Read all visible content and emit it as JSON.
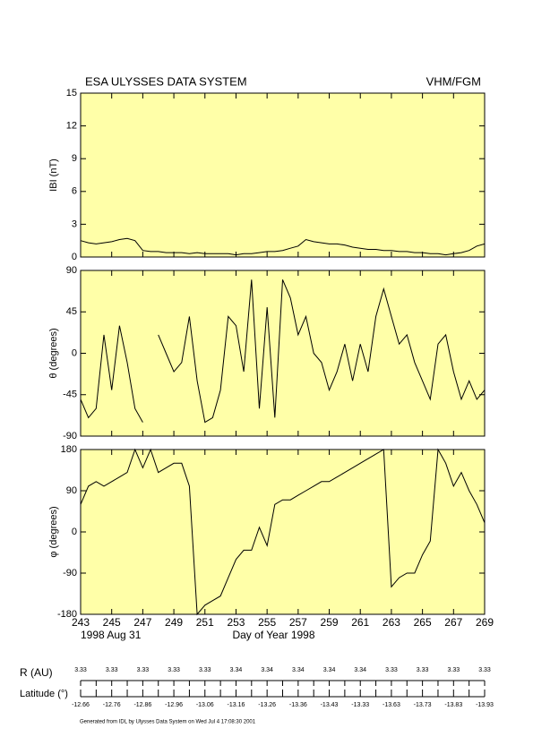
{
  "header": {
    "title": "ESA ULYSSES DATA SYSTEM",
    "instrument": "VHM/FGM"
  },
  "chart_data": [
    {
      "type": "line",
      "ylabel": "IBI (nT)",
      "color": "#000000",
      "x": [
        243,
        243.5,
        244,
        244.5,
        245,
        245.5,
        246,
        246.5,
        247,
        247.5,
        248,
        248.5,
        249,
        249.5,
        250,
        250.5,
        251,
        251.5,
        252,
        252.5,
        253,
        253.5,
        254,
        254.5,
        255,
        255.5,
        256,
        256.5,
        257,
        257.5,
        258,
        258.5,
        259,
        259.5,
        260,
        260.5,
        261,
        261.5,
        262,
        262.5,
        263,
        263.5,
        264,
        264.5,
        265,
        265.5,
        266,
        266.5,
        267,
        267.5,
        268,
        268.5,
        269
      ],
      "values": [
        1.5,
        1.3,
        1.2,
        1.3,
        1.4,
        1.6,
        1.7,
        1.5,
        0.6,
        0.5,
        0.5,
        0.4,
        0.4,
        0.4,
        0.3,
        0.4,
        0.3,
        0.3,
        0.3,
        0.3,
        0.2,
        0.3,
        0.3,
        0.4,
        0.5,
        0.5,
        0.6,
        0.8,
        1.0,
        1.6,
        1.4,
        1.3,
        1.2,
        1.2,
        1.1,
        0.9,
        0.8,
        0.7,
        0.7,
        0.6,
        0.6,
        0.5,
        0.5,
        0.4,
        0.4,
        0.3,
        0.3,
        0.2,
        0.3,
        0.4,
        0.6,
        1.0,
        1.2
      ],
      "xlim": [
        243,
        269
      ],
      "xticks": [
        243,
        245,
        247,
        249,
        251,
        253,
        255,
        257,
        259,
        261,
        263,
        265,
        267,
        269
      ],
      "ylim": [
        0,
        15
      ],
      "yticks": [
        0,
        3,
        6,
        9,
        12,
        15
      ]
    },
    {
      "type": "line",
      "ylabel": "θ (degrees)",
      "color": "#000000",
      "x": [
        243,
        243.5,
        244,
        244.5,
        245,
        245.5,
        246,
        246.5,
        247,
        247.5,
        248,
        248.5,
        249,
        249.5,
        250,
        250.5,
        251,
        251.5,
        252,
        252.5,
        253,
        253.5,
        254,
        254.5,
        255,
        255.5,
        256,
        256.5,
        257,
        257.5,
        258,
        258.5,
        259,
        259.5,
        260,
        260.5,
        261,
        261.5,
        262,
        262.5,
        263,
        263.5,
        264,
        264.5,
        265,
        265.5,
        266,
        266.5,
        267,
        267.5,
        268,
        268.5,
        269
      ],
      "values": [
        -50,
        -70,
        -60,
        20,
        -40,
        30,
        -10,
        -60,
        -75,
        null,
        20,
        0,
        -20,
        -10,
        40,
        -30,
        -75,
        -70,
        -40,
        40,
        30,
        -20,
        80,
        -60,
        50,
        -70,
        80,
        60,
        20,
        40,
        0,
        -10,
        -40,
        -20,
        10,
        -30,
        10,
        -20,
        40,
        70,
        40,
        10,
        20,
        -10,
        -30,
        -50,
        10,
        20,
        -20,
        -50,
        -30,
        -50,
        -40
      ],
      "xlim": [
        243,
        269
      ],
      "xticks": [
        243,
        245,
        247,
        249,
        251,
        253,
        255,
        257,
        259,
        261,
        263,
        265,
        267,
        269
      ],
      "ylim": [
        -90,
        90
      ],
      "yticks": [
        -90,
        -45,
        0,
        45,
        90
      ]
    },
    {
      "type": "line",
      "ylabel": "φ (degrees)",
      "xlabel": "Day of Year 1998",
      "date_label": "1998 Aug 31",
      "color": "#000000",
      "x": [
        243,
        243.5,
        244,
        244.5,
        245,
        245.5,
        246,
        246.5,
        247,
        247.5,
        248,
        248.5,
        249,
        249.5,
        250,
        250.5,
        251,
        251.5,
        252,
        252.5,
        253,
        253.5,
        254,
        254.5,
        255,
        255.5,
        256,
        256.5,
        257,
        257.5,
        258,
        258.5,
        259,
        259.5,
        260,
        260.5,
        261,
        261.5,
        262,
        262.5,
        263,
        263.5,
        264,
        264.5,
        265,
        265.5,
        266,
        266.5,
        267,
        267.5,
        268,
        268.5,
        269
      ],
      "values": [
        60,
        100,
        110,
        100,
        110,
        120,
        130,
        180,
        140,
        180,
        130,
        140,
        150,
        150,
        100,
        -180,
        -160,
        -150,
        -140,
        -100,
        -60,
        -40,
        -40,
        10,
        -30,
        60,
        70,
        70,
        80,
        90,
        100,
        110,
        110,
        120,
        130,
        140,
        150,
        160,
        170,
        180,
        -120,
        -100,
        -90,
        -90,
        -50,
        -20,
        180,
        150,
        100,
        130,
        90,
        60,
        20
      ],
      "xlim": [
        243,
        269
      ],
      "xticks": [
        243,
        245,
        247,
        249,
        251,
        253,
        255,
        257,
        259,
        261,
        263,
        265,
        267,
        269
      ],
      "ylim": [
        -180,
        180
      ],
      "yticks": [
        -180,
        -90,
        0,
        90,
        180
      ]
    }
  ],
  "ephemeris": {
    "r_label": "R (AU)",
    "lat_label": "Latitude (°)",
    "days": [
      243,
      245,
      247,
      249,
      251,
      253,
      255,
      257,
      259,
      261,
      263,
      265,
      267,
      269
    ],
    "r_values": [
      3.33,
      3.33,
      3.33,
      3.33,
      3.33,
      3.34,
      3.34,
      3.34,
      3.34,
      3.34,
      3.33,
      3.33,
      3.33,
      3.33
    ],
    "lat_values": [
      -12.66,
      -12.76,
      -12.86,
      -12.96,
      -13.06,
      -13.16,
      -13.26,
      -13.36,
      -13.43,
      -13.33,
      -13.63,
      -13.73,
      -13.83,
      -13.93
    ]
  },
  "footer": "Generated from IDL by Ulysses Data System on Wed Jul  4 17:08:30 2001"
}
